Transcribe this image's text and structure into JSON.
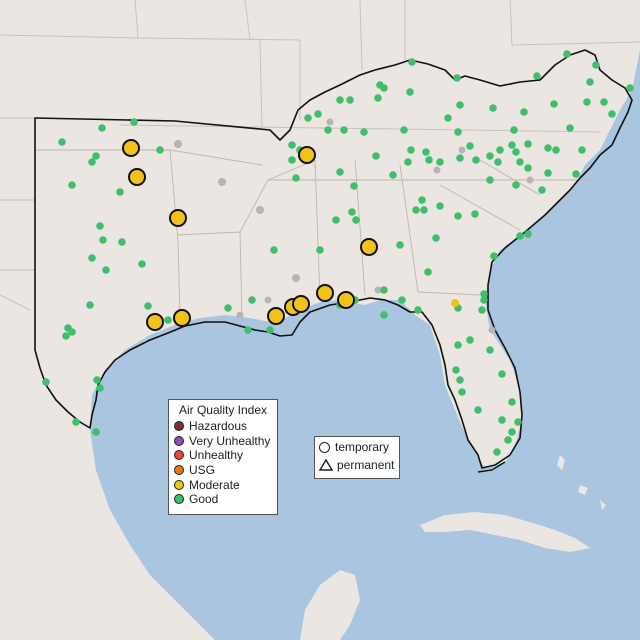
{
  "legend": {
    "title": "Air Quality Index",
    "categories": [
      {
        "label": "Hazardous",
        "color": "#7e2e2e"
      },
      {
        "label": "Very Unhealthy",
        "color": "#8f4fb0"
      },
      {
        "label": "Unhealthy",
        "color": "#e8453c"
      },
      {
        "label": "USG",
        "color": "#e07b1e"
      },
      {
        "label": "Moderate",
        "color": "#f2c218"
      },
      {
        "label": "Good",
        "color": "#3fbf6a"
      }
    ]
  },
  "monitor_types": [
    {
      "label": "temporary",
      "shape": "circle-icon"
    },
    {
      "label": "permanent",
      "shape": "triangle-icon"
    }
  ],
  "colors": {
    "water": "#a9c5df",
    "land": "#ebe6e1",
    "region_border": "#111111",
    "inactive_monitor": "#b5b5b5"
  }
}
